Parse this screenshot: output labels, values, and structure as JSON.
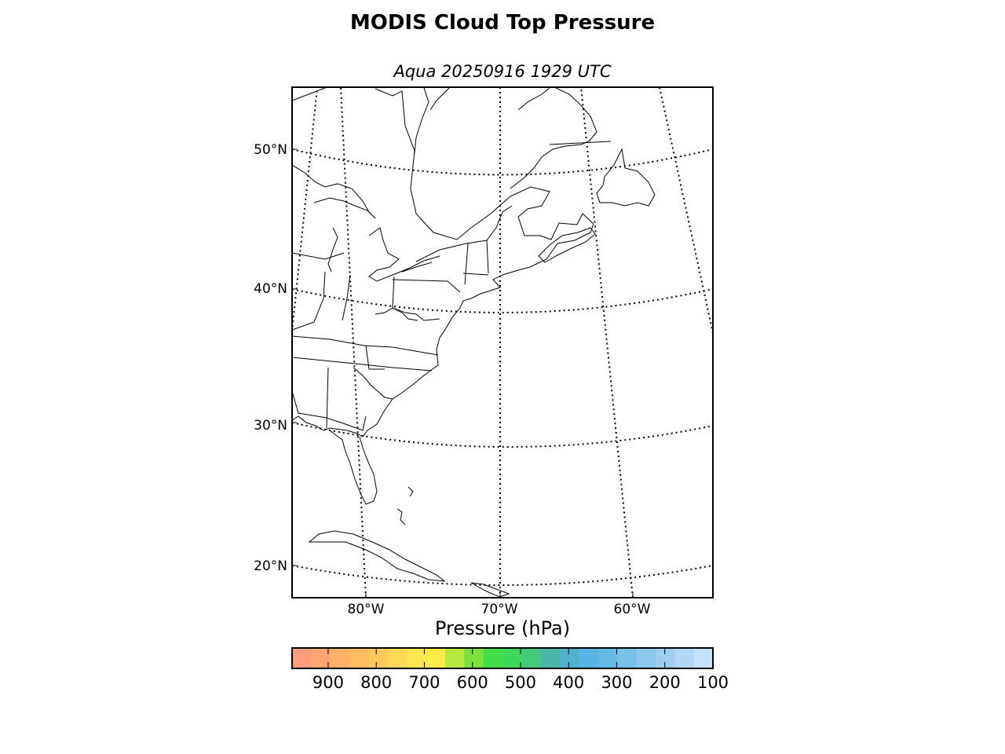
{
  "title": "MODIS Cloud Top Pressure",
  "subtitle": "Aqua 20250916 1929 UTC",
  "map": {
    "lat_labels": [
      "50°N",
      "40°N",
      "30°N",
      "20°N"
    ],
    "lon_labels": [
      "80°W",
      "70°W",
      "60°W"
    ],
    "graticule_style": "dotted",
    "background": "#ffffff",
    "features": [
      "coastlines",
      "country borders",
      "state borders",
      "great lakes"
    ]
  },
  "colorbar": {
    "label": "Pressure (hPa)",
    "ticks": [
      "900",
      "800",
      "700",
      "600",
      "500",
      "400",
      "300",
      "200",
      "100"
    ],
    "range_hpa": [
      975,
      100
    ],
    "colors": [
      "#ff9c7c",
      "#ffa574",
      "#ffb06a",
      "#ffbc62",
      "#ffc95b",
      "#ffd856",
      "#ffe54e",
      "#fced46",
      "#b8e83e",
      "#7ee040",
      "#44dc47",
      "#3ed85a",
      "#43c87c",
      "#4ab6a6",
      "#52b0cf",
      "#58b4e5",
      "#65bae6",
      "#77c0ea",
      "#8ac8ee",
      "#9ecff1",
      "#b2d7f5",
      "#c6e1fa"
    ]
  }
}
